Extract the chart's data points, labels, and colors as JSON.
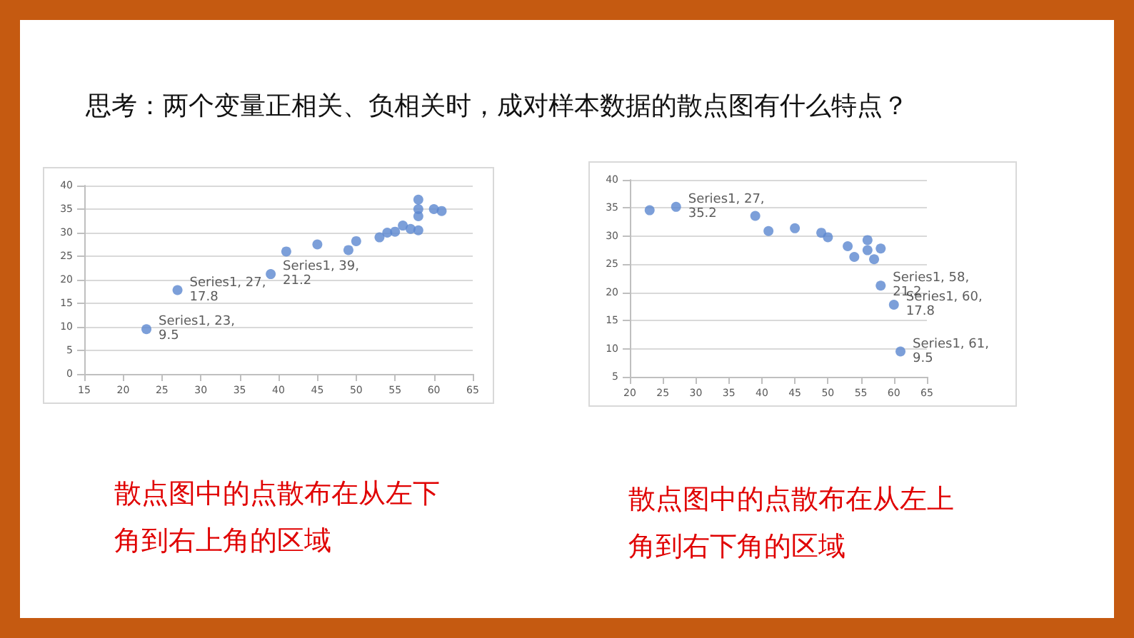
{
  "chart_data": [
    {
      "type": "scatter",
      "title": "思考：两个变量正相关、负相关时，成对样本数据的散点图有什么特点？",
      "annotations": [
        "散点图中的点散布在从左下角到右上角的区域"
      ],
      "x": [
        23,
        27,
        39,
        41,
        45,
        49,
        50,
        53,
        54,
        55,
        56,
        57,
        58,
        58,
        58,
        58,
        60,
        61
      ],
      "series": [
        {
          "color": "#5b87cf",
          "values": [
            9.5,
            17.8,
            21.2,
            26,
            27.5,
            26.3,
            28.2,
            29,
            30,
            30.2,
            31.5,
            30.8,
            30.5,
            33.5,
            35,
            37,
            35,
            34.6
          ],
          "value_labels": [
            "Series1, 23,\n9.5",
            "Series1, 27,\n17.8",
            "Series1, 39,\n21.2",
            null,
            null,
            null,
            null,
            null,
            null,
            null,
            null,
            null,
            null,
            null,
            null,
            null,
            null,
            null
          ]
        }
      ],
      "xlim": [
        15,
        65
      ],
      "xticks": [
        15,
        20,
        25,
        30,
        35,
        40,
        45,
        50,
        55,
        60,
        65
      ],
      "ylim": [
        0,
        40
      ],
      "yticks": [
        0,
        5,
        10,
        15,
        20,
        25,
        30,
        35,
        40
      ],
      "grid": "y",
      "marker": "circle"
    },
    {
      "type": "scatter",
      "annotations": [
        "散点图中的点散布在从左上角到右下角的区域"
      ],
      "x": [
        23,
        27,
        39,
        41,
        45,
        49,
        50,
        53,
        54,
        56,
        56,
        57,
        58,
        58,
        60,
        61
      ],
      "series": [
        {
          "color": "#5b87cf",
          "values": [
            34.6,
            35.2,
            33.6,
            30.9,
            31.4,
            30.6,
            29.8,
            28.2,
            26.3,
            27.5,
            29.3,
            25.9,
            27.8,
            21.2,
            17.8,
            9.5
          ],
          "value_labels": [
            null,
            "Series1, 27,\n35.2",
            null,
            null,
            null,
            null,
            null,
            null,
            null,
            null,
            null,
            null,
            null,
            "Series1, 58,\n21.2",
            "Series1, 60,\n17.8",
            "Series1, 61,\n9.5"
          ]
        }
      ],
      "xlim": [
        20,
        65
      ],
      "xticks": [
        20,
        25,
        30,
        35,
        40,
        45,
        50,
        55,
        60,
        65
      ],
      "ylim": [
        5,
        40
      ],
      "yticks": [
        5,
        10,
        15,
        20,
        25,
        30,
        35,
        40
      ],
      "grid": "y",
      "marker": "circle"
    }
  ]
}
